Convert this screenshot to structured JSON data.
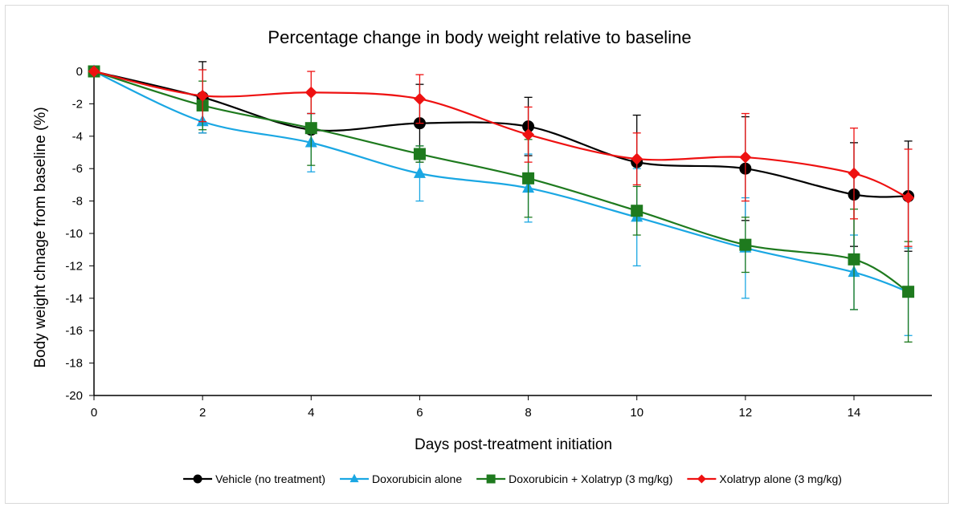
{
  "chart_data": {
    "type": "line",
    "title": "Percentage change in body weight relative to baseline",
    "xlabel": "Days post-treatment initiation",
    "ylabel": "Body weight chnage from baseline (%)",
    "xlim": [
      0,
      15
    ],
    "ylim": [
      -20,
      0
    ],
    "x_ticks": [
      0,
      2,
      4,
      6,
      8,
      10,
      12,
      14
    ],
    "y_ticks": [
      0,
      -2,
      -4,
      -6,
      -8,
      -10,
      -12,
      -14,
      -16,
      -18,
      -20
    ],
    "legend_position": "bottom",
    "grid": false,
    "x": [
      0,
      2,
      4,
      6,
      8,
      10,
      12,
      14,
      15
    ],
    "series": [
      {
        "name": "Vehicle (no treatment)",
        "color": "#000000",
        "marker": "circle",
        "values": [
          0,
          -1.6,
          -3.6,
          -3.2,
          -3.4,
          -5.6,
          -6.0,
          -7.6,
          -7.7
        ],
        "error": [
          0,
          2.2,
          1.0,
          2.4,
          1.8,
          2.9,
          3.2,
          3.2,
          3.4
        ]
      },
      {
        "name": "Doxorubicin alone",
        "color": "#1aa7e3",
        "marker": "triangle",
        "values": [
          0,
          -3.1,
          -4.4,
          -6.3,
          -7.2,
          -9.0,
          -10.9,
          -12.4,
          -13.6
        ],
        "error": [
          0,
          0.7,
          1.8,
          1.7,
          2.1,
          3.0,
          3.1,
          2.3,
          2.7
        ]
      },
      {
        "name": "Doxorubicin + Xolatryp (3 mg/kg)",
        "color": "#1e7a1e",
        "marker": "square",
        "values": [
          0,
          -2.1,
          -3.5,
          -5.1,
          -6.6,
          -8.6,
          -10.7,
          -11.6,
          -13.6
        ],
        "error": [
          0,
          1.5,
          2.3,
          0.5,
          2.4,
          1.5,
          1.7,
          3.1,
          3.1
        ]
      },
      {
        "name": "Xolatryp alone (3 mg/kg)",
        "color": "#ee1111",
        "marker": "diamond",
        "values": [
          0,
          -1.5,
          -1.3,
          -1.7,
          -3.9,
          -5.4,
          -5.3,
          -6.3,
          -7.8
        ],
        "error": [
          0,
          1.6,
          1.3,
          1.5,
          1.7,
          1.6,
          2.7,
          2.8,
          3.0
        ]
      }
    ]
  }
}
